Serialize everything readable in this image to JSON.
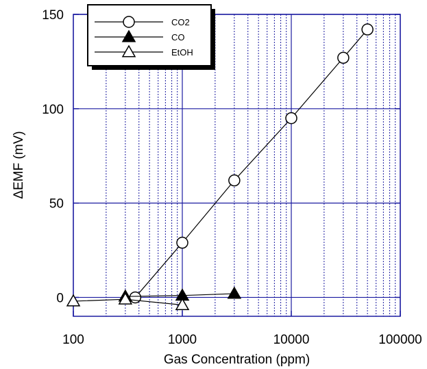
{
  "chart_data": {
    "type": "scatter",
    "xlabel": "Gas Concentration (ppm)",
    "ylabel": "ΔEMF (mV)",
    "x_scale": "log",
    "xlim": [
      100,
      100000
    ],
    "ylim": [
      -10,
      150
    ],
    "x_ticks": [
      100,
      1000,
      10000,
      100000
    ],
    "x_tick_labels": [
      "100",
      "1000",
      "10000",
      "100000"
    ],
    "y_ticks": [
      0,
      50,
      100,
      150
    ],
    "y_tick_labels": [
      "0",
      "50",
      "100",
      "150"
    ],
    "grid": true,
    "legend_position": "top-left",
    "series": [
      {
        "name": "CO2",
        "marker": "open-circle",
        "x": [
          370,
          1000,
          3000,
          10000,
          30000,
          50000
        ],
        "y": [
          0,
          29,
          62,
          95,
          127,
          142
        ]
      },
      {
        "name": "CO",
        "marker": "filled-triangle",
        "x": [
          300,
          1000,
          3000
        ],
        "y": [
          0.5,
          1,
          2
        ]
      },
      {
        "name": "EtOH",
        "marker": "open-triangle",
        "x": [
          100,
          300,
          1000
        ],
        "y": [
          -2,
          -1,
          -4
        ]
      }
    ]
  },
  "colors": {
    "frame": "#1a1aa0",
    "grid": "#1a1aa0",
    "series": "#000000"
  }
}
